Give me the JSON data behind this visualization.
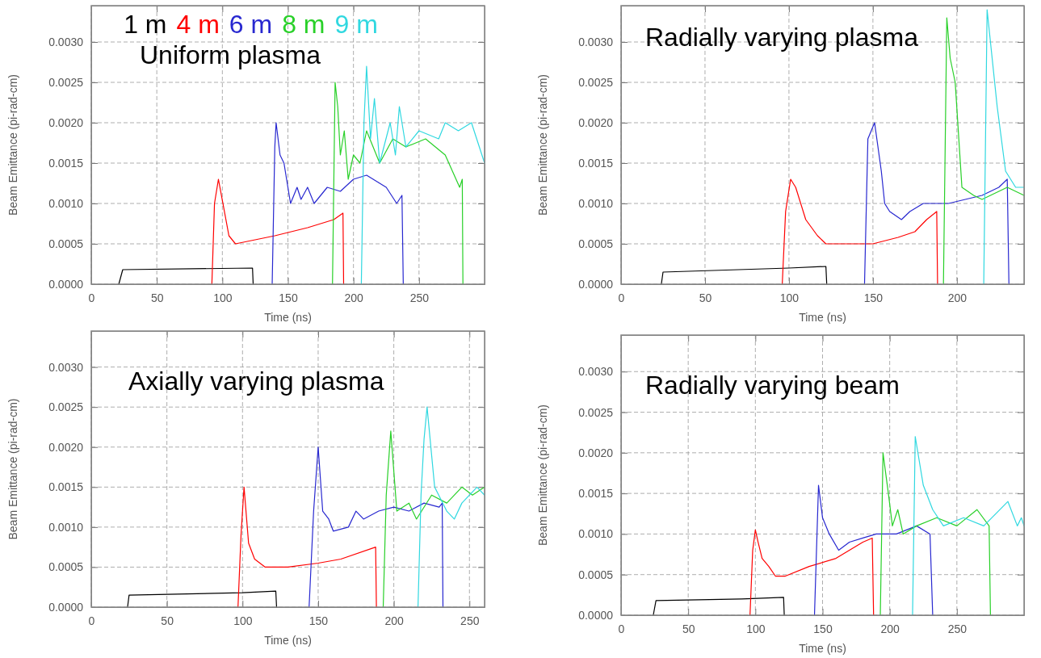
{
  "chart_data": [
    {
      "type": "line",
      "title": "Uniform plasma",
      "xlabel": "Time (ns)",
      "ylabel": "Beam Emittance (pi-rad-cm)",
      "xlim": [
        0,
        300
      ],
      "ylim": [
        0,
        0.00345
      ],
      "xticks": [
        0,
        50,
        100,
        150,
        200,
        250
      ],
      "yticks": [
        {
          "value": 0,
          "label": "0.0000"
        },
        {
          "value": 0.0005,
          "label": "0.0005"
        },
        {
          "value": 0.001,
          "label": "0.0010"
        },
        {
          "value": 0.0015,
          "label": "0.0015"
        },
        {
          "value": 0.002,
          "label": "0.0020"
        },
        {
          "value": 0.0025,
          "label": "0.0025"
        },
        {
          "value": 0.003,
          "label": "0.0030"
        }
      ],
      "grid": true,
      "legend": "top",
      "line_style": "solid",
      "series": [
        {
          "name": "1 m",
          "color": "#000000",
          "x": [
            21,
            24,
            123,
            123.5
          ],
          "values": [
            0,
            0.00018,
            0.0002,
            0
          ]
        },
        {
          "name": "4 m",
          "color": "#ff0000",
          "x": [
            92,
            94,
            97,
            105,
            110,
            125,
            140,
            165,
            185,
            192,
            192.5
          ],
          "values": [
            0,
            0.001,
            0.0013,
            0.0006,
            0.0005,
            0.00055,
            0.0006,
            0.0007,
            0.0008,
            0.00088,
            0
          ]
        },
        {
          "name": "6 m",
          "color": "#2828d0",
          "x": [
            138,
            140,
            141,
            144,
            147,
            150,
            152,
            157,
            160,
            165,
            170,
            180,
            190,
            200,
            210,
            225,
            233,
            237,
            238
          ],
          "values": [
            0,
            0.0017,
            0.002,
            0.0016,
            0.0015,
            0.0012,
            0.001,
            0.0012,
            0.00105,
            0.0012,
            0.001,
            0.0012,
            0.00115,
            0.0013,
            0.00135,
            0.0012,
            0.001,
            0.0011,
            0
          ]
        },
        {
          "name": "8 m",
          "color": "#28d028",
          "x": [
            184,
            186,
            188,
            190,
            193,
            196,
            200,
            205,
            210,
            220,
            230,
            240,
            255,
            270,
            281,
            283,
            283.5
          ],
          "values": [
            0,
            0.0025,
            0.0022,
            0.0016,
            0.0019,
            0.0013,
            0.0016,
            0.0015,
            0.0019,
            0.0015,
            0.0018,
            0.0017,
            0.0018,
            0.0016,
            0.0012,
            0.0013,
            0
          ]
        },
        {
          "name": "9 m",
          "color": "#30d8e0",
          "x": [
            206,
            208,
            210,
            213,
            216,
            220,
            228,
            232,
            235,
            240,
            250,
            265,
            270,
            280,
            290,
            296,
            300
          ],
          "values": [
            0,
            0.002,
            0.0027,
            0.0018,
            0.0023,
            0.0015,
            0.002,
            0.0016,
            0.0022,
            0.0017,
            0.0019,
            0.0018,
            0.002,
            0.0019,
            0.002,
            0.0017,
            0.0015
          ]
        }
      ]
    },
    {
      "type": "line",
      "title": "Radially varying plasma",
      "xlabel": "Time (ns)",
      "ylabel": "Beam Emittance (pi-rad-cm)",
      "xlim": [
        0,
        240
      ],
      "ylim": [
        0,
        0.00345
      ],
      "xticks": [
        0,
        50,
        100,
        150,
        200
      ],
      "yticks": [
        {
          "value": 0,
          "label": "0.0000"
        },
        {
          "value": 0.0005,
          "label": "0.0005"
        },
        {
          "value": 0.001,
          "label": "0.0010"
        },
        {
          "value": 0.0015,
          "label": "0.0015"
        },
        {
          "value": 0.002,
          "label": "0.0020"
        },
        {
          "value": 0.0025,
          "label": "0.0025"
        },
        {
          "value": 0.003,
          "label": "0.0030"
        }
      ],
      "grid": true,
      "line_style": "solid",
      "series": [
        {
          "color": "#000000",
          "x": [
            24,
            25,
            100,
            122,
            122.5
          ],
          "values": [
            0,
            0.00015,
            0.0002,
            0.00022,
            0
          ]
        },
        {
          "color": "#ff0000",
          "x": [
            96,
            98,
            101,
            104,
            110,
            117,
            122,
            135,
            150,
            165,
            175,
            182,
            188,
            188.5
          ],
          "values": [
            0,
            0.0009,
            0.0013,
            0.0012,
            0.0008,
            0.0006,
            0.0005,
            0.0005,
            0.0005,
            0.00058,
            0.00065,
            0.0008,
            0.0009,
            0
          ]
        },
        {
          "color": "#2828d0",
          "x": [
            145,
            147,
            149,
            151,
            155,
            157,
            160,
            167,
            172,
            180,
            195,
            205,
            215,
            225,
            230,
            231
          ],
          "values": [
            0,
            0.0018,
            0.0019,
            0.002,
            0.0014,
            0.001,
            0.0009,
            0.0008,
            0.0009,
            0.001,
            0.001,
            0.00105,
            0.0011,
            0.0012,
            0.0013,
            0
          ]
        },
        {
          "color": "#28d028",
          "x": [
            192,
            194,
            196,
            199,
            203,
            210,
            215,
            220,
            230,
            240
          ],
          "values": [
            0,
            0.0033,
            0.0028,
            0.0025,
            0.0012,
            0.0011,
            0.00105,
            0.0011,
            0.0012,
            0.0011
          ]
        },
        {
          "color": "#30d8e0",
          "x": [
            216,
            218,
            220,
            224,
            229,
            235,
            240
          ],
          "values": [
            0,
            0.0034,
            0.003,
            0.0022,
            0.0014,
            0.0012,
            0.0012
          ]
        }
      ]
    },
    {
      "type": "line",
      "title": "Axially varying plasma",
      "xlabel": "Time (ns)",
      "ylabel": "Beam Emittance (pi-rad-cm)",
      "xlim": [
        0,
        260
      ],
      "ylim": [
        0,
        0.00345
      ],
      "xticks": [
        0,
        50,
        100,
        150,
        200,
        250
      ],
      "yticks": [
        {
          "value": 0,
          "label": "0.0000"
        },
        {
          "value": 0.0005,
          "label": "0.0005"
        },
        {
          "value": 0.001,
          "label": "0.0010"
        },
        {
          "value": 0.0015,
          "label": "0.0015"
        },
        {
          "value": 0.002,
          "label": "0.0020"
        },
        {
          "value": 0.0025,
          "label": "0.0025"
        },
        {
          "value": 0.003,
          "label": "0.0030"
        }
      ],
      "grid": true,
      "line_style": "solid",
      "series": [
        {
          "color": "#000000",
          "x": [
            24,
            25,
            100,
            122,
            122.5
          ],
          "values": [
            0,
            0.00015,
            0.00018,
            0.0002,
            0
          ]
        },
        {
          "color": "#ff0000",
          "x": [
            97,
            99,
            101,
            104,
            108,
            115,
            130,
            150,
            165,
            188,
            188.5
          ],
          "values": [
            0,
            0.0009,
            0.0015,
            0.0008,
            0.0006,
            0.0005,
            0.0005,
            0.00055,
            0.0006,
            0.00075,
            0
          ]
        },
        {
          "color": "#2828d0",
          "x": [
            144,
            147,
            150,
            153,
            157,
            160,
            170,
            175,
            180,
            190,
            200,
            210,
            220,
            230,
            232,
            232.5
          ],
          "values": [
            0,
            0.0012,
            0.002,
            0.0012,
            0.0011,
            0.00095,
            0.001,
            0.0012,
            0.0011,
            0.0012,
            0.00125,
            0.0012,
            0.0013,
            0.00125,
            0.0013,
            0
          ]
        },
        {
          "color": "#28d028",
          "x": [
            193,
            195,
            198,
            202,
            210,
            215,
            225,
            235,
            245,
            252,
            260
          ],
          "values": [
            0,
            0.0014,
            0.0022,
            0.0012,
            0.0013,
            0.0011,
            0.0014,
            0.0013,
            0.0015,
            0.0014,
            0.0015
          ]
        },
        {
          "color": "#30d8e0",
          "x": [
            216,
            218,
            220,
            222,
            227,
            235,
            240,
            245,
            255,
            260
          ],
          "values": [
            0,
            0.0014,
            0.0021,
            0.0025,
            0.0015,
            0.0012,
            0.0011,
            0.0013,
            0.0015,
            0.0014
          ]
        }
      ]
    },
    {
      "type": "line",
      "title": "Radially varying beam",
      "xlabel": "Time (ns)",
      "ylabel": "Beam Emittance (pi-rad-cm)",
      "xlim": [
        0,
        300
      ],
      "ylim": [
        0,
        0.00345
      ],
      "xticks": [
        0,
        50,
        100,
        150,
        200,
        250
      ],
      "yticks": [
        {
          "value": 0,
          "label": "0.0000"
        },
        {
          "value": 0.0005,
          "label": "0.0005"
        },
        {
          "value": 0.001,
          "label": "0.0010"
        },
        {
          "value": 0.0015,
          "label": "0.0015"
        },
        {
          "value": 0.002,
          "label": "0.0020"
        },
        {
          "value": 0.0025,
          "label": "0.0025"
        },
        {
          "value": 0.003,
          "label": "0.0030"
        }
      ],
      "grid": true,
      "line_style": "solid",
      "series": [
        {
          "color": "#000000",
          "x": [
            24,
            26,
            90,
            121,
            121.5
          ],
          "values": [
            0,
            0.00018,
            0.0002,
            0.00022,
            0
          ]
        },
        {
          "color": "#ff0000",
          "x": [
            96,
            98,
            100,
            102,
            105,
            110,
            115,
            122,
            140,
            160,
            180,
            187,
            188
          ],
          "values": [
            0,
            0.0008,
            0.00105,
            0.0009,
            0.0007,
            0.0006,
            0.00048,
            0.00048,
            0.0006,
            0.0007,
            0.0009,
            0.00095,
            0
          ]
        },
        {
          "color": "#2828d0",
          "x": [
            144,
            147,
            150,
            155,
            162,
            170,
            180,
            190,
            205,
            220,
            230,
            232
          ],
          "values": [
            0,
            0.0016,
            0.0012,
            0.001,
            0.0008,
            0.0009,
            0.00095,
            0.001,
            0.001,
            0.0011,
            0.001,
            0
          ]
        },
        {
          "color": "#28d028",
          "x": [
            193,
            195,
            199,
            202,
            206,
            210,
            220,
            235,
            250,
            265,
            274,
            275
          ],
          "values": [
            0,
            0.002,
            0.0015,
            0.0011,
            0.0013,
            0.001,
            0.0011,
            0.0012,
            0.0011,
            0.0013,
            0.0011,
            0
          ]
        },
        {
          "color": "#30d8e0",
          "x": [
            217,
            219,
            225,
            232,
            240,
            255,
            270,
            288,
            295,
            298,
            300
          ],
          "values": [
            0,
            0.0022,
            0.0016,
            0.0013,
            0.0011,
            0.0012,
            0.0011,
            0.0014,
            0.0011,
            0.0012,
            0.0011
          ]
        }
      ]
    }
  ]
}
